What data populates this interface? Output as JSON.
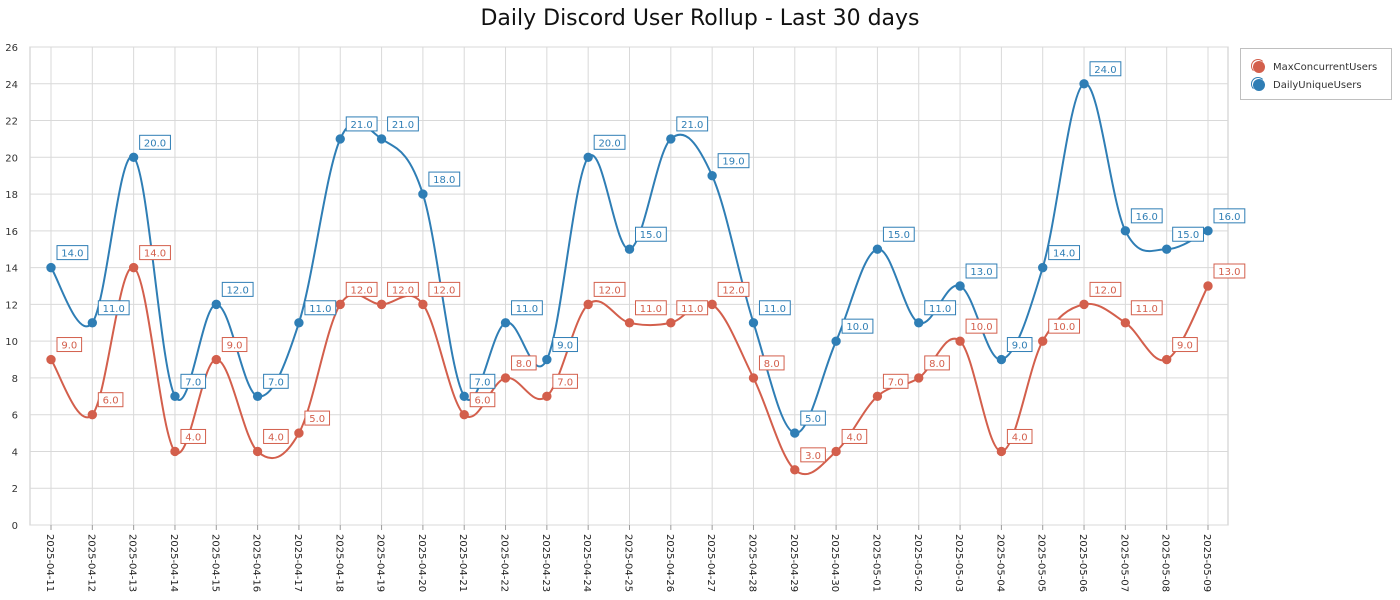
{
  "chart_data": {
    "type": "line",
    "title": "Daily Discord User Rollup - Last 30 days",
    "xlabel": "",
    "ylabel": "",
    "ylim": [
      0,
      26
    ],
    "yticks": [
      "0",
      "2",
      "4",
      "6",
      "8",
      "10",
      "12",
      "14",
      "16",
      "18",
      "20",
      "22",
      "24",
      "26"
    ],
    "grid": true,
    "legend_position": "right",
    "categories": [
      "2025-04-11",
      "2025-04-12",
      "2025-04-13",
      "2025-04-14",
      "2025-04-15",
      "2025-04-16",
      "2025-04-17",
      "2025-04-18",
      "2025-04-19",
      "2025-04-20",
      "2025-04-21",
      "2025-04-22",
      "2025-04-23",
      "2025-04-24",
      "2025-04-25",
      "2025-04-26",
      "2025-04-27",
      "2025-04-28",
      "2025-04-29",
      "2025-04-30",
      "2025-05-01",
      "2025-05-02",
      "2025-05-03",
      "2025-05-04",
      "2025-05-05",
      "2025-05-06",
      "2025-05-07",
      "2025-05-08",
      "2025-05-09"
    ],
    "series": [
      {
        "name": "MaxConcurrentUsers",
        "color": "#d35f4c",
        "values": [
          9,
          6,
          14,
          4,
          9,
          4,
          5,
          12,
          12,
          12,
          6,
          8,
          7,
          12,
          11,
          11,
          12,
          8,
          3,
          4,
          7,
          8,
          10,
          4,
          10,
          12,
          11,
          9,
          13
        ],
        "labels": [
          "9.0",
          "6.0",
          "14.0",
          "4.0",
          "9.0",
          "4.0",
          "5.0",
          "12.0",
          "12.0",
          "12.0",
          "6.0",
          "8.0",
          "7.0",
          "12.0",
          "11.0",
          "11.0",
          "12.0",
          "8.0",
          "3.0",
          "4.0",
          "7.0",
          "8.0",
          "10.0",
          "4.0",
          "10.0",
          "12.0",
          "11.0",
          "9.0",
          "13.0"
        ]
      },
      {
        "name": "DailyUniqueUsers",
        "color": "#2f7eb5",
        "values": [
          14,
          11,
          20,
          7,
          12,
          7,
          11,
          21,
          21,
          18,
          7,
          11,
          9,
          20,
          15,
          21,
          19,
          11,
          5,
          10,
          15,
          11,
          13,
          9,
          14,
          24,
          16,
          15,
          16
        ],
        "labels": [
          "14.0",
          "11.0",
          "20.0",
          "7.0",
          "12.0",
          "7.0",
          "11.0",
          "21.0",
          "21.0",
          "18.0",
          "7.0",
          "11.0",
          "9.0",
          "20.0",
          "15.0",
          "21.0",
          "19.0",
          "11.0",
          "5.0",
          "10.0",
          "15.0",
          "11.0",
          "13.0",
          "9.0",
          "14.0",
          "24.0",
          "16.0",
          "15.0",
          "16.0"
        ]
      }
    ]
  }
}
